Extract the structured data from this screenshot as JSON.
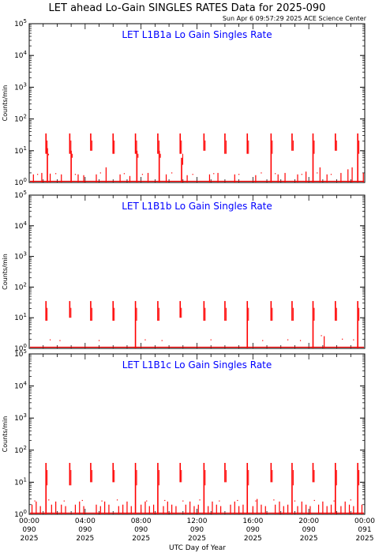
{
  "figure": {
    "title": "LET ahead Lo-Gain SINGLES RATES Data for 2025-090",
    "timestamp": "Sun Apr  6 09:57:29 2025 ACE Science Center",
    "xlabel": "UTC Day of Year",
    "colors": {
      "data": "#ff0000",
      "panel_title": "#0000ff",
      "axis": "#000000",
      "background": "#ffffff"
    }
  },
  "chart_data": [
    {
      "type": "line",
      "title": "LET L1B1a Lo Gain Singles Rate",
      "ylabel": "Counts/min",
      "yscale": "log",
      "ylim": [
        1,
        100000
      ],
      "xlim": [
        0,
        24
      ],
      "x_unit": "UTC hours of day 090",
      "baseline": 1,
      "spikes": [
        {
          "x": 1.2,
          "lo": 8,
          "hi": 35
        },
        {
          "x": 1.3,
          "lo": 1,
          "hi": 12
        },
        {
          "x": 2.9,
          "lo": 8,
          "hi": 35
        },
        {
          "x": 3.0,
          "lo": 1,
          "hi": 10
        },
        {
          "x": 4.4,
          "lo": 10,
          "hi": 35
        },
        {
          "x": 6.0,
          "lo": 8,
          "hi": 35
        },
        {
          "x": 7.6,
          "lo": 8,
          "hi": 35
        },
        {
          "x": 7.7,
          "lo": 1,
          "hi": 10
        },
        {
          "x": 9.2,
          "lo": 8,
          "hi": 35
        },
        {
          "x": 9.3,
          "lo": 1,
          "hi": 10
        },
        {
          "x": 10.8,
          "lo": 8,
          "hi": 35
        },
        {
          "x": 10.9,
          "lo": 1,
          "hi": 6
        },
        {
          "x": 12.5,
          "lo": 10,
          "hi": 35
        },
        {
          "x": 14.0,
          "lo": 8,
          "hi": 35
        },
        {
          "x": 15.6,
          "lo": 8,
          "hi": 35
        },
        {
          "x": 17.3,
          "lo": 1,
          "hi": 35
        },
        {
          "x": 18.8,
          "lo": 10,
          "hi": 35
        },
        {
          "x": 20.3,
          "lo": 1,
          "hi": 35
        },
        {
          "x": 21.9,
          "lo": 10,
          "hi": 35
        },
        {
          "x": 23.5,
          "lo": 1,
          "hi": 35
        }
      ],
      "small_spikes": [
        [
          0.3,
          1.8
        ],
        [
          0.9,
          2.0
        ],
        [
          1.5,
          1.9
        ],
        [
          2.3,
          1.8
        ],
        [
          3.5,
          1.8
        ],
        [
          3.9,
          1.7
        ],
        [
          4.8,
          1.8
        ],
        [
          5.5,
          3.0
        ],
        [
          6.5,
          1.8
        ],
        [
          7.2,
          1.6
        ],
        [
          8.5,
          2.0
        ],
        [
          9.8,
          1.8
        ],
        [
          11.3,
          1.7
        ],
        [
          12.9,
          1.8
        ],
        [
          13.5,
          2.0
        ],
        [
          14.7,
          1.8
        ],
        [
          16.2,
          1.7
        ],
        [
          17.8,
          1.8
        ],
        [
          18.3,
          2.0
        ],
        [
          19.2,
          1.8
        ],
        [
          19.8,
          2.2
        ],
        [
          20.8,
          3.0
        ],
        [
          21.3,
          1.8
        ],
        [
          22.3,
          2.0
        ],
        [
          22.8,
          2.6
        ],
        [
          23.1,
          3.0
        ],
        [
          23.9,
          2.0
        ]
      ],
      "scatter": [
        [
          0.6,
          1.8
        ],
        [
          1.9,
          1.9
        ],
        [
          3.3,
          1.8
        ],
        [
          5.1,
          2.0
        ],
        [
          6.8,
          1.9
        ],
        [
          8.1,
          1.8
        ],
        [
          10.2,
          2.0
        ],
        [
          11.7,
          1.8
        ],
        [
          13.2,
          1.9
        ],
        [
          15.0,
          1.8
        ],
        [
          16.6,
          2.0
        ],
        [
          17.6,
          1.9
        ],
        [
          19.5,
          1.8
        ],
        [
          20.6,
          2.0
        ],
        [
          21.6,
          1.8
        ]
      ]
    },
    {
      "type": "line",
      "title": "LET L1B1b Lo Gain Singles Rate",
      "ylabel": "Counts/min",
      "yscale": "log",
      "ylim": [
        1,
        100000
      ],
      "xlim": [
        0,
        24
      ],
      "x_unit": "UTC hours of day 090",
      "baseline": 1,
      "spikes": [
        {
          "x": 1.2,
          "lo": 8,
          "hi": 35
        },
        {
          "x": 2.9,
          "lo": 10,
          "hi": 35
        },
        {
          "x": 4.4,
          "lo": 8,
          "hi": 35
        },
        {
          "x": 6.0,
          "lo": 8,
          "hi": 35
        },
        {
          "x": 7.6,
          "lo": 1,
          "hi": 35
        },
        {
          "x": 9.2,
          "lo": 8,
          "hi": 35
        },
        {
          "x": 10.8,
          "lo": 10,
          "hi": 35
        },
        {
          "x": 12.5,
          "lo": 8,
          "hi": 35
        },
        {
          "x": 14.0,
          "lo": 8,
          "hi": 35
        },
        {
          "x": 15.6,
          "lo": 1,
          "hi": 35
        },
        {
          "x": 17.3,
          "lo": 8,
          "hi": 35
        },
        {
          "x": 18.8,
          "lo": 8,
          "hi": 35
        },
        {
          "x": 20.3,
          "lo": 1,
          "hi": 35
        },
        {
          "x": 21.9,
          "lo": 8,
          "hi": 35
        },
        {
          "x": 23.5,
          "lo": 1,
          "hi": 35
        }
      ],
      "small_spikes": [
        [
          21.1,
          2.5
        ]
      ],
      "scatter": [
        [
          1.5,
          1.9
        ],
        [
          2.2,
          1.8
        ],
        [
          5.0,
          1.8
        ],
        [
          8.3,
          1.9
        ],
        [
          9.5,
          1.8
        ],
        [
          13.0,
          1.9
        ],
        [
          16.7,
          1.8
        ],
        [
          18.5,
          1.9
        ],
        [
          19.4,
          1.8
        ],
        [
          20.9,
          2.6
        ],
        [
          22.4,
          2.0
        ],
        [
          23.2,
          1.9
        ]
      ]
    },
    {
      "type": "line",
      "title": "LET L1B1c Lo Gain Singles Rate",
      "ylabel": "Counts/min",
      "yscale": "log",
      "ylim": [
        1,
        100000
      ],
      "xlim": [
        0,
        24
      ],
      "x_unit": "UTC hours of day 090",
      "baseline": 1,
      "spikes": [
        {
          "x": 1.2,
          "lo": 1,
          "hi": 40
        },
        {
          "x": 2.9,
          "lo": 8,
          "hi": 40
        },
        {
          "x": 4.4,
          "lo": 10,
          "hi": 40
        },
        {
          "x": 6.0,
          "lo": 10,
          "hi": 40
        },
        {
          "x": 7.6,
          "lo": 1,
          "hi": 40
        },
        {
          "x": 9.2,
          "lo": 1,
          "hi": 40
        },
        {
          "x": 10.8,
          "lo": 10,
          "hi": 40
        },
        {
          "x": 12.5,
          "lo": 1,
          "hi": 40
        },
        {
          "x": 14.0,
          "lo": 10,
          "hi": 40
        },
        {
          "x": 15.6,
          "lo": 1,
          "hi": 40
        },
        {
          "x": 17.3,
          "lo": 10,
          "hi": 40
        },
        {
          "x": 18.8,
          "lo": 1,
          "hi": 40
        },
        {
          "x": 20.3,
          "lo": 10,
          "hi": 40
        },
        {
          "x": 21.9,
          "lo": 1,
          "hi": 40
        },
        {
          "x": 23.5,
          "lo": 1,
          "hi": 40
        }
      ],
      "small_spikes": [
        [
          0.2,
          2.0
        ],
        [
          0.5,
          2.5
        ],
        [
          0.8,
          1.8
        ],
        [
          1.6,
          2.0
        ],
        [
          1.9,
          2.5
        ],
        [
          2.3,
          2.0
        ],
        [
          2.6,
          1.8
        ],
        [
          3.3,
          2.0
        ],
        [
          3.6,
          2.5
        ],
        [
          3.9,
          1.8
        ],
        [
          4.8,
          2.0
        ],
        [
          5.1,
          1.8
        ],
        [
          5.4,
          2.5
        ],
        [
          5.7,
          2.0
        ],
        [
          6.4,
          1.8
        ],
        [
          6.7,
          2.0
        ],
        [
          7.0,
          2.5
        ],
        [
          7.3,
          1.8
        ],
        [
          8.0,
          2.0
        ],
        [
          8.3,
          2.5
        ],
        [
          8.6,
          1.8
        ],
        [
          8.9,
          2.0
        ],
        [
          9.6,
          1.8
        ],
        [
          9.9,
          2.5
        ],
        [
          10.2,
          2.0
        ],
        [
          10.5,
          1.8
        ],
        [
          11.2,
          2.0
        ],
        [
          11.5,
          2.5
        ],
        [
          11.8,
          1.8
        ],
        [
          12.1,
          2.0
        ],
        [
          12.8,
          1.8
        ],
        [
          13.1,
          2.5
        ],
        [
          13.4,
          2.0
        ],
        [
          13.7,
          1.8
        ],
        [
          14.4,
          2.0
        ],
        [
          14.7,
          2.5
        ],
        [
          15.0,
          1.8
        ],
        [
          15.3,
          2.0
        ],
        [
          16.0,
          1.8
        ],
        [
          16.3,
          3.0
        ],
        [
          16.6,
          2.0
        ],
        [
          16.9,
          1.8
        ],
        [
          17.6,
          2.0
        ],
        [
          17.9,
          2.5
        ],
        [
          18.2,
          1.8
        ],
        [
          18.5,
          2.0
        ],
        [
          19.2,
          1.8
        ],
        [
          19.5,
          2.5
        ],
        [
          19.8,
          2.0
        ],
        [
          20.1,
          1.8
        ],
        [
          20.7,
          2.0
        ],
        [
          21.0,
          2.5
        ],
        [
          21.3,
          1.8
        ],
        [
          21.6,
          2.0
        ],
        [
          22.3,
          1.8
        ],
        [
          22.6,
          2.5
        ],
        [
          22.9,
          2.0
        ],
        [
          23.2,
          1.8
        ],
        [
          23.8,
          2.0
        ]
      ],
      "scatter": [
        [
          0.4,
          2.6
        ],
        [
          1.4,
          2.8
        ],
        [
          2.5,
          2.6
        ],
        [
          3.8,
          2.7
        ],
        [
          5.2,
          2.6
        ],
        [
          6.3,
          2.8
        ],
        [
          8.4,
          2.6
        ],
        [
          9.7,
          2.7
        ],
        [
          11.0,
          2.6
        ],
        [
          12.2,
          2.8
        ],
        [
          13.6,
          2.6
        ],
        [
          14.9,
          2.7
        ],
        [
          16.2,
          2.6
        ],
        [
          17.5,
          2.8
        ],
        [
          19.0,
          2.6
        ],
        [
          20.4,
          2.7
        ],
        [
          21.8,
          2.6
        ],
        [
          23.0,
          2.8
        ]
      ]
    }
  ],
  "yaxis": {
    "ticks": [
      {
        "value": 1,
        "base": "10",
        "exp": "0"
      },
      {
        "value": 10,
        "base": "10",
        "exp": "1"
      },
      {
        "value": 100,
        "base": "10",
        "exp": "2"
      },
      {
        "value": 1000,
        "base": "10",
        "exp": "3"
      },
      {
        "value": 10000,
        "base": "10",
        "exp": "4"
      },
      {
        "value": 100000,
        "base": "10",
        "exp": "5"
      }
    ]
  },
  "xaxis": {
    "ticks": [
      {
        "value": 0,
        "time": "00:00",
        "doy": "090",
        "year": "2025"
      },
      {
        "value": 4,
        "time": "04:00",
        "doy": "090",
        "year": "2025"
      },
      {
        "value": 8,
        "time": "08:00",
        "doy": "090",
        "year": "2025"
      },
      {
        "value": 12,
        "time": "12:00",
        "doy": "090",
        "year": "2025"
      },
      {
        "value": 16,
        "time": "16:00",
        "doy": "090",
        "year": "2025"
      },
      {
        "value": 20,
        "time": "20:00",
        "doy": "090",
        "year": "2025"
      },
      {
        "value": 24,
        "time": "00:00",
        "doy": "091",
        "year": "2025"
      }
    ]
  }
}
